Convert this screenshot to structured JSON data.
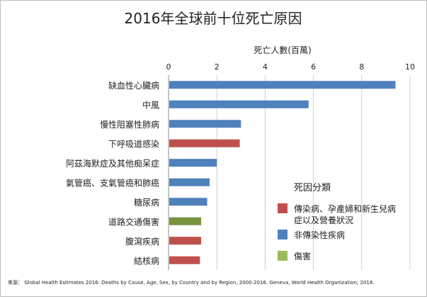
{
  "chart_data": {
    "type": "bar",
    "orientation": "horizontal",
    "title": "2016年全球前十位死亡原因",
    "xlabel": "死亡人數(百萬)",
    "xlim": [
      0,
      10
    ],
    "xticks": [
      0,
      2,
      4,
      6,
      8,
      10
    ],
    "grid": true,
    "legend_position": "right",
    "legend": {
      "title": "死因分類",
      "entries": [
        {
          "label_lines": [
            "傳染病、孕產婦和新生兒病",
            "症以及營養狀況"
          ],
          "color": "#c0504d"
        },
        {
          "label_lines": [
            "非傳染性疾病"
          ],
          "color": "#4f81bd"
        },
        {
          "label_lines": [
            "傷害"
          ],
          "color": "#9bbb59"
        }
      ]
    },
    "categories": [
      "缺血性心臟病",
      "中風",
      "慢性阻塞性肺病",
      "下呼吸道感染",
      "阿茲海默症及其他痴呆症",
      "氣管癌、支氣管癌和肺癌",
      "糖尿病",
      "道路交通傷害",
      "腹瀉疾病",
      "結核病"
    ],
    "values": [
      9.4,
      5.8,
      3.0,
      2.95,
      2.0,
      1.7,
      1.6,
      1.35,
      1.35,
      1.3
    ],
    "colors": [
      "#4f81bd",
      "#4f81bd",
      "#4f81bd",
      "#c0504d",
      "#4f81bd",
      "#4f81bd",
      "#4f81bd",
      "#77933c",
      "#c0504d",
      "#c0504d"
    ]
  },
  "source": "來源： Global Health Estimates 2016: Deaths by Cause, Age, Sex, by Country and by Region, 2000-2016. Geneva, World Health Organization; 2018."
}
